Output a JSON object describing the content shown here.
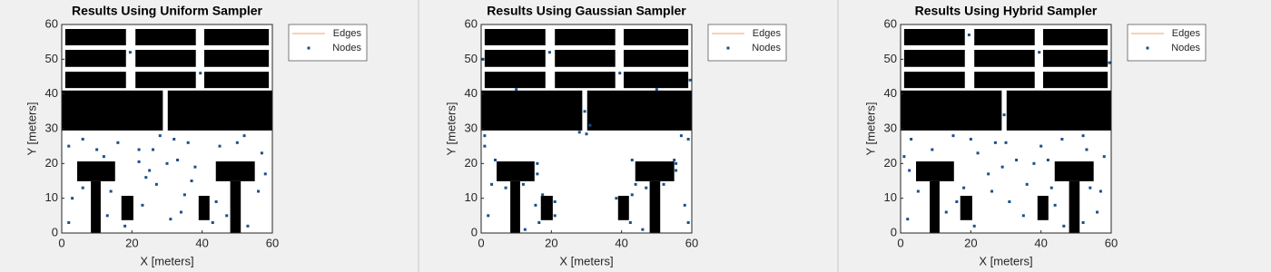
{
  "chart_data": [
    {
      "type": "scatter",
      "title": "Results Using Uniform Sampler",
      "xlabel": "X [meters]",
      "ylabel": "Y [meters]",
      "xlim": [
        0,
        60
      ],
      "ylim": [
        0,
        60
      ],
      "xticks": [
        0,
        20,
        40,
        60
      ],
      "yticks": [
        0,
        10,
        20,
        30,
        40,
        50,
        60
      ],
      "legend": "outside-right",
      "obstacles": [
        [
          1,
          54,
          18.3,
          58.7
        ],
        [
          21,
          54,
          38.2,
          58.7
        ],
        [
          40.6,
          54,
          59,
          58.7
        ],
        [
          1,
          47.8,
          18.3,
          52.7
        ],
        [
          21,
          47.8,
          38.2,
          52.7
        ],
        [
          40.6,
          47.8,
          59,
          52.7
        ],
        [
          1,
          41.7,
          18.3,
          46.4
        ],
        [
          21,
          41.7,
          38.2,
          46.4
        ],
        [
          40.6,
          41.7,
          59,
          46.4
        ],
        [
          0,
          29.5,
          28.8,
          41
        ],
        [
          30.2,
          29.5,
          60,
          41
        ],
        [
          4.4,
          14.9,
          15.2,
          20.6
        ],
        [
          8.3,
          0,
          11.1,
          14.9
        ],
        [
          17,
          3.7,
          20.4,
          10.7
        ],
        [
          39,
          3.7,
          42.1,
          10.7
        ],
        [
          43.9,
          14.9,
          55,
          20.6
        ],
        [
          48,
          0,
          51,
          14.9
        ]
      ],
      "series": [
        {
          "name": "Edges",
          "color": "#f0a070",
          "x": [],
          "y": []
        },
        {
          "name": "Nodes",
          "color": "#1b4f8a",
          "x": [
            2,
            6,
            12,
            16,
            22,
            25,
            28,
            33,
            36,
            45,
            52,
            57,
            3,
            14,
            23,
            27,
            31,
            35,
            44,
            56,
            2,
            18,
            24,
            34,
            38,
            47,
            53,
            58,
            6,
            26,
            30,
            37,
            13,
            43,
            22,
            32,
            10,
            50,
            19.5,
            39.5
          ],
          "y": [
            25,
            27,
            22,
            26,
            24,
            18,
            28,
            21,
            26,
            25,
            28,
            23,
            10,
            12,
            8,
            14,
            4,
            11,
            9,
            12,
            3,
            2,
            16,
            6,
            19,
            5,
            2,
            17,
            13,
            24,
            20,
            15,
            5,
            3,
            20.5,
            27,
            24,
            26,
            52,
            46
          ]
        }
      ]
    },
    {
      "type": "scatter",
      "title": "Results Using Gaussian Sampler",
      "xlabel": "X [meters]",
      "ylabel": "Y [meters]",
      "xlim": [
        0,
        60
      ],
      "ylim": [
        0,
        60
      ],
      "xticks": [
        0,
        20,
        40,
        60
      ],
      "yticks": [
        0,
        10,
        20,
        30,
        40,
        50,
        60
      ],
      "legend": "outside-right",
      "obstacles": [
        [
          1,
          54,
          18.3,
          58.7
        ],
        [
          21,
          54,
          38.2,
          58.7
        ],
        [
          40.6,
          54,
          59,
          58.7
        ],
        [
          1,
          47.8,
          18.3,
          52.7
        ],
        [
          21,
          47.8,
          38.2,
          52.7
        ],
        [
          40.6,
          47.8,
          59,
          52.7
        ],
        [
          1,
          41.7,
          18.3,
          46.4
        ],
        [
          21,
          41.7,
          38.2,
          46.4
        ],
        [
          40.6,
          41.7,
          59,
          46.4
        ],
        [
          0,
          29.5,
          28.8,
          41
        ],
        [
          30.2,
          29.5,
          60,
          41
        ],
        [
          4.4,
          14.9,
          15.2,
          20.6
        ],
        [
          8.3,
          0,
          11.1,
          14.9
        ],
        [
          17,
          3.7,
          20.4,
          10.7
        ],
        [
          39,
          3.7,
          42.1,
          10.7
        ],
        [
          43.9,
          14.9,
          55,
          20.6
        ],
        [
          48,
          0,
          51,
          14.9
        ]
      ],
      "series": [
        {
          "name": "Edges",
          "color": "#f0a070",
          "x": [],
          "y": []
        },
        {
          "name": "Nodes",
          "color": "#1b4f8a",
          "x": [
            1,
            3,
            2,
            16,
            16,
            7,
            12,
            15.5,
            21,
            17.5,
            16.5,
            21,
            28,
            30,
            31,
            29.5,
            38.5,
            43,
            42.5,
            43,
            44,
            47,
            52,
            55.5,
            55.5,
            58,
            59,
            57,
            1,
            59,
            19.5,
            39.5,
            10,
            50,
            4,
            55,
            12.5,
            46,
            0.5,
            59.5
          ],
          "y": [
            25,
            14,
            5,
            20,
            17,
            13,
            14,
            8,
            9,
            11,
            3,
            5,
            29,
            28.5,
            31,
            35,
            10,
            11,
            3,
            21,
            14,
            13,
            14,
            18,
            20,
            8,
            3,
            28,
            28,
            27,
            52,
            46,
            41.3,
            41.3,
            21,
            21,
            1,
            1,
            50,
            44
          ]
        }
      ]
    },
    {
      "type": "scatter",
      "title": "Results Using Hybrid Sampler",
      "xlabel": "X [meters]",
      "ylabel": "Y [meters]",
      "xlim": [
        0,
        60
      ],
      "ylim": [
        0,
        60
      ],
      "xticks": [
        0,
        20,
        40,
        60
      ],
      "yticks": [
        0,
        10,
        20,
        30,
        40,
        50,
        60
      ],
      "legend": "outside-right",
      "obstacles": [
        [
          1,
          54,
          18.3,
          58.7
        ],
        [
          21,
          54,
          38.2,
          58.7
        ],
        [
          40.6,
          54,
          59,
          58.7
        ],
        [
          1,
          47.8,
          18.3,
          52.7
        ],
        [
          21,
          47.8,
          38.2,
          52.7
        ],
        [
          40.6,
          47.8,
          59,
          52.7
        ],
        [
          1,
          41.7,
          18.3,
          46.4
        ],
        [
          21,
          41.7,
          38.2,
          46.4
        ],
        [
          40.6,
          41.7,
          59,
          46.4
        ],
        [
          0,
          29.5,
          28.8,
          41
        ],
        [
          30.2,
          29.5,
          60,
          41
        ],
        [
          4.4,
          14.9,
          15.2,
          20.6
        ],
        [
          8.3,
          0,
          11.1,
          14.9
        ],
        [
          17,
          3.7,
          20.4,
          10.7
        ],
        [
          39,
          3.7,
          42.1,
          10.7
        ],
        [
          43.9,
          14.9,
          55,
          20.6
        ],
        [
          48,
          0,
          51,
          14.9
        ]
      ],
      "series": [
        {
          "name": "Edges",
          "color": "#f0a070",
          "x": [],
          "y": []
        },
        {
          "name": "Nodes",
          "color": "#1b4f8a",
          "x": [
            3,
            9,
            15,
            22,
            27,
            33,
            40,
            46,
            53,
            58,
            5,
            18,
            25,
            31,
            36,
            44,
            52,
            57,
            2,
            13,
            21,
            29,
            35,
            43,
            56,
            2.5,
            16,
            26,
            38,
            46.5,
            54,
            1,
            20,
            30,
            42,
            52,
            19.5,
            39.5,
            59.5,
            29.5
          ],
          "y": [
            27,
            24,
            28,
            23,
            26,
            21,
            25,
            27,
            24,
            22,
            12,
            13,
            17,
            9,
            14,
            8,
            3,
            12,
            4,
            6,
            2,
            19,
            5,
            13,
            6,
            18,
            9,
            12,
            20,
            2,
            13,
            22,
            27,
            26,
            21,
            28,
            57,
            52,
            49,
            34
          ]
        }
      ]
    }
  ]
}
